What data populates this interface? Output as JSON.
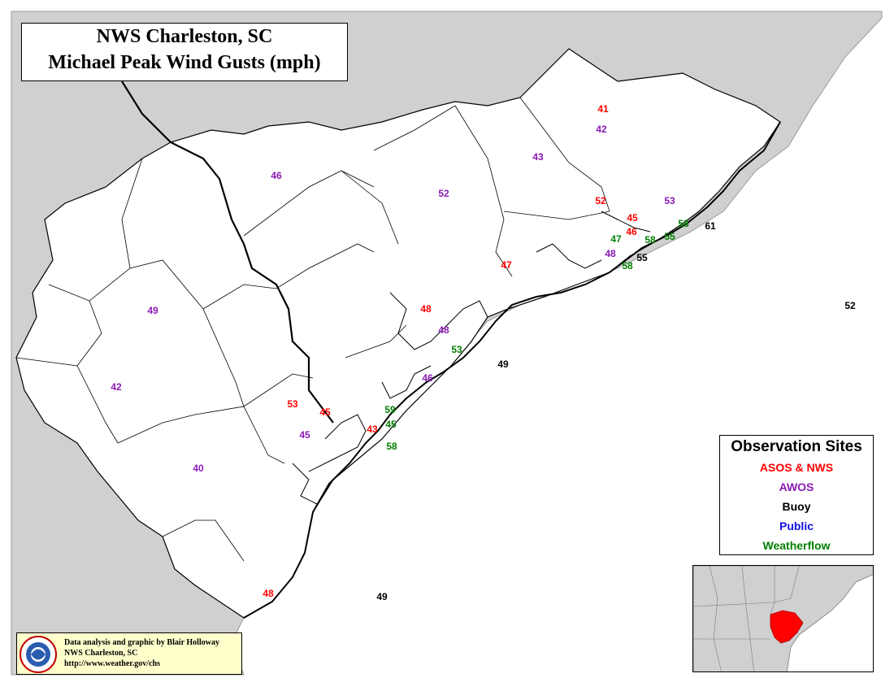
{
  "title": {
    "line1": "NWS Charleston, SC",
    "line2": "Michael Peak Wind Gusts (mph)"
  },
  "legend": {
    "title": "Observation Sites",
    "items": [
      {
        "label": "ASOS & NWS",
        "color": "#ff0000"
      },
      {
        "label": "AWOS",
        "color": "#8a1ab3"
      },
      {
        "label": "Buoy",
        "color": "#000000"
      },
      {
        "label": "Public",
        "color": "#1010e0"
      },
      {
        "label": "Weatherflow",
        "color": "#008000"
      }
    ]
  },
  "credit": {
    "line1": "Data analysis and graphic by Blair Holloway",
    "line2": "NWS Charleston, SC",
    "line3": "http://www.weather.gov/chs"
  },
  "colors": {
    "land_outside": "#d0d0d0",
    "land_inside": "#ffffff",
    "water": "#ffffff",
    "highlight": "#ff0000"
  },
  "observations": [
    {
      "value": "41",
      "type": "ASOS & NWS"
    },
    {
      "value": "42",
      "type": "AWOS"
    },
    {
      "value": "43",
      "type": "AWOS"
    },
    {
      "value": "46",
      "type": "AWOS"
    },
    {
      "value": "52",
      "type": "AWOS"
    },
    {
      "value": "52",
      "type": "ASOS & NWS"
    },
    {
      "value": "53",
      "type": "AWOS"
    },
    {
      "value": "45",
      "type": "ASOS & NWS"
    },
    {
      "value": "46",
      "type": "ASOS & NWS"
    },
    {
      "value": "58",
      "type": "Weatherflow"
    },
    {
      "value": "61",
      "type": "Buoy"
    },
    {
      "value": "47",
      "type": "Weatherflow"
    },
    {
      "value": "58",
      "type": "Weatherflow"
    },
    {
      "value": "55",
      "type": "Weatherflow"
    },
    {
      "value": "48",
      "type": "AWOS"
    },
    {
      "value": "55",
      "type": "Buoy"
    },
    {
      "value": "58",
      "type": "Weatherflow"
    },
    {
      "value": "47",
      "type": "ASOS & NWS"
    },
    {
      "value": "52",
      "type": "Buoy"
    },
    {
      "value": "49",
      "type": "AWOS"
    },
    {
      "value": "48",
      "type": "ASOS & NWS"
    },
    {
      "value": "48",
      "type": "AWOS"
    },
    {
      "value": "53",
      "type": "Weatherflow"
    },
    {
      "value": "49",
      "type": "Buoy"
    },
    {
      "value": "46",
      "type": "AWOS"
    },
    {
      "value": "42",
      "type": "AWOS"
    },
    {
      "value": "53",
      "type": "ASOS & NWS"
    },
    {
      "value": "45",
      "type": "ASOS & NWS"
    },
    {
      "value": "59",
      "type": "Weatherflow"
    },
    {
      "value": "43",
      "type": "ASOS & NWS"
    },
    {
      "value": "45",
      "type": "Weatherflow"
    },
    {
      "value": "45",
      "type": "AWOS"
    },
    {
      "value": "58",
      "type": "Weatherflow"
    },
    {
      "value": "40",
      "type": "AWOS"
    },
    {
      "value": "48",
      "type": "ASOS & NWS"
    },
    {
      "value": "49",
      "type": "Buoy"
    }
  ]
}
